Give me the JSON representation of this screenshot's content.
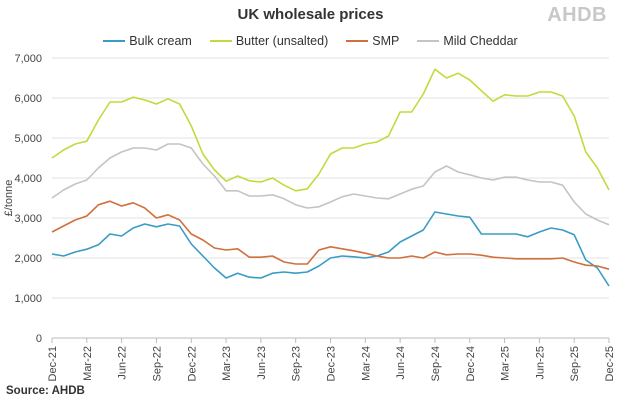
{
  "chart_data": {
    "type": "line",
    "title": "UK wholesale prices",
    "ylabel": "£/tonne",
    "xlabel": "",
    "ylim": [
      0,
      7000
    ],
    "yticks": [
      "0",
      "1,000",
      "2,000",
      "3,000",
      "4,000",
      "5,000",
      "6,000",
      "7,000"
    ],
    "x": [
      "Dec-21",
      "Jan-22",
      "Feb-22",
      "Mar-22",
      "Apr-22",
      "May-22",
      "Jun-22",
      "Jul-22",
      "Aug-22",
      "Sep-22",
      "Oct-22",
      "Nov-22",
      "Dec-22",
      "Jan-23",
      "Feb-23",
      "Mar-23",
      "Apr-23",
      "May-23",
      "Jun-23",
      "Jul-23",
      "Aug-23",
      "Sep-23",
      "Oct-23",
      "Nov-23",
      "Dec-23",
      "Jan-24",
      "Feb-24",
      "Mar-24",
      "Apr-24",
      "May-24",
      "Jun-24",
      "Jul-24",
      "Aug-24",
      "Sep-24",
      "Oct-24",
      "Nov-24",
      "Dec-24",
      "Jan-25",
      "Feb-25",
      "Mar-25",
      "Apr-25",
      "May-25",
      "Jun-25",
      "Jul-25",
      "Aug-25",
      "Sep-25",
      "Oct-25",
      "Nov-25",
      "Dec-25"
    ],
    "xticks": [
      "Dec-21",
      "Mar-22",
      "Jun-22",
      "Sep-22",
      "Dec-22",
      "Mar-23",
      "Jun-23",
      "Sep-23",
      "Dec-23",
      "Mar-24",
      "Jun-24",
      "Sep-24",
      "Dec-24",
      "Mar-25",
      "Jun-25",
      "Sep-25",
      "Dec-25"
    ],
    "grid": true,
    "legend_position": "top",
    "series": [
      {
        "name": "Bulk cream",
        "color": "#3a9cc4",
        "values": [
          2100,
          2050,
          2150,
          2220,
          2330,
          2600,
          2550,
          2750,
          2850,
          2780,
          2850,
          2800,
          2350,
          2050,
          1750,
          1500,
          1620,
          1520,
          1500,
          1620,
          1650,
          1620,
          1650,
          1800,
          2000,
          2050,
          2030,
          2000,
          2050,
          2150,
          2400,
          2550,
          2700,
          3150,
          3100,
          3050,
          3020,
          2600,
          2600,
          2600,
          2600,
          2530,
          2650,
          2750,
          2700,
          2580,
          1950,
          1750,
          1300
        ]
      },
      {
        "name": "Butter (unsalted)",
        "color": "#c5d93c",
        "values": [
          4500,
          4700,
          4850,
          4920,
          5450,
          5900,
          5900,
          6020,
          5950,
          5850,
          5980,
          5850,
          5300,
          4600,
          4200,
          3920,
          4050,
          3930,
          3900,
          4000,
          3820,
          3680,
          3730,
          4100,
          4600,
          4750,
          4750,
          4850,
          4900,
          5050,
          5650,
          5650,
          6100,
          6720,
          6500,
          6620,
          6450,
          6180,
          5920,
          6080,
          6050,
          6050,
          6150,
          6150,
          6050,
          5550,
          4650,
          4250,
          3700
        ]
      },
      {
        "name": "SMP",
        "color": "#d0703c",
        "values": [
          2650,
          2800,
          2950,
          3050,
          3330,
          3420,
          3300,
          3380,
          3250,
          3000,
          3080,
          2950,
          2600,
          2450,
          2250,
          2200,
          2230,
          2020,
          2020,
          2050,
          1900,
          1850,
          1850,
          2200,
          2280,
          2230,
          2180,
          2120,
          2050,
          2000,
          2000,
          2050,
          2000,
          2150,
          2080,
          2100,
          2100,
          2070,
          2020,
          2000,
          1980,
          1980,
          1980,
          1980,
          2000,
          1900,
          1820,
          1800,
          1720
        ]
      },
      {
        "name": "Mild Cheddar",
        "color": "#c4c4c4",
        "values": [
          3500,
          3700,
          3850,
          3950,
          4250,
          4500,
          4650,
          4750,
          4750,
          4700,
          4850,
          4850,
          4750,
          4350,
          4050,
          3680,
          3680,
          3550,
          3550,
          3580,
          3480,
          3330,
          3250,
          3280,
          3400,
          3530,
          3600,
          3550,
          3500,
          3480,
          3600,
          3720,
          3800,
          4150,
          4300,
          4150,
          4080,
          4000,
          3950,
          4020,
          4020,
          3950,
          3900,
          3900,
          3820,
          3400,
          3100,
          2950,
          2830
        ]
      }
    ]
  },
  "logo_text": "AHDB",
  "source": "Source: AHDB"
}
